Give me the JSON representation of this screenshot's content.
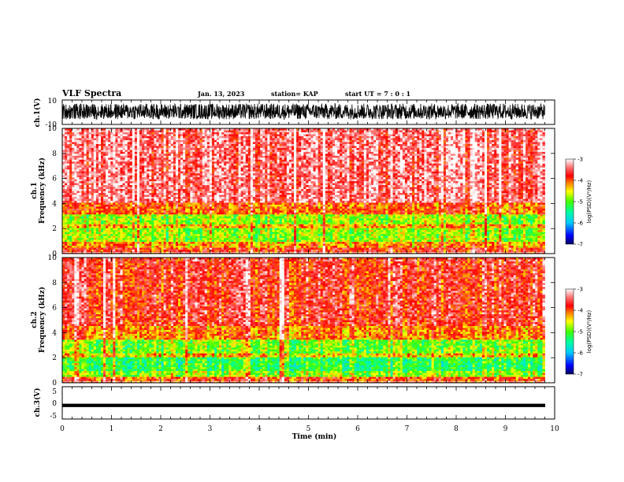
{
  "header": {
    "title": "VLF Spectra",
    "date": "Jan. 13, 2023",
    "station": "station= KAP",
    "start": "start  UT =   7 : 0  : 1"
  },
  "chart_data": [
    {
      "type": "line",
      "panel": "ch1-waveform",
      "ylabel": "ch.1(V)",
      "ylim": [
        -10,
        10
      ],
      "yticks": [
        "10",
        "-10"
      ],
      "xlim": [
        0,
        10
      ],
      "signal": "dense oscillation, approx -5 to +8 V, data ends at ~9.8 min"
    },
    {
      "type": "heatmap",
      "panel": "ch1-spectrogram",
      "ylabel": "ch.1\nFrequency (kHz)",
      "ylim": [
        0,
        10
      ],
      "yticks": [
        "0",
        "2",
        "4",
        "6",
        "8",
        "10"
      ],
      "xlim": [
        0,
        10
      ],
      "x_data_end": 9.8,
      "color_scale": {
        "label": "log(PSD)(V²/Hz)",
        "min": -7,
        "max": -3,
        "ticks": [
          "-3",
          "-4",
          "-5",
          "-6",
          "-7"
        ]
      },
      "bands": [
        {
          "f_low": 0.0,
          "f_high": 0.5,
          "level": -3.8
        },
        {
          "f_low": 0.5,
          "f_high": 1.0,
          "level": -4.2
        },
        {
          "f_low": 1.0,
          "f_high": 2.0,
          "level": -4.8
        },
        {
          "f_low": 2.0,
          "f_high": 2.3,
          "level": -4.3
        },
        {
          "f_low": 2.3,
          "f_high": 3.2,
          "level": -4.8
        },
        {
          "f_low": 3.2,
          "f_high": 4.0,
          "level": -4.0
        },
        {
          "f_low": 4.0,
          "f_high": 10.0,
          "level": -3.4
        }
      ]
    },
    {
      "type": "heatmap",
      "panel": "ch2-spectrogram",
      "ylabel": "ch.2\nFrequency (kHz)",
      "ylim": [
        0,
        10
      ],
      "yticks": [
        "0",
        "2",
        "4",
        "6",
        "8",
        "10"
      ],
      "xlim": [
        0,
        10
      ],
      "x_data_end": 9.8,
      "color_scale": {
        "label": "log(PSD)(V²/Hz)",
        "min": -7,
        "max": -3,
        "ticks": [
          "-3",
          "-4",
          "-5",
          "-6",
          "-7"
        ]
      },
      "bands": [
        {
          "f_low": 0.0,
          "f_high": 0.5,
          "level": -3.9
        },
        {
          "f_low": 0.5,
          "f_high": 1.0,
          "level": -4.8
        },
        {
          "f_low": 1.0,
          "f_high": 2.0,
          "level": -5.2
        },
        {
          "f_low": 2.0,
          "f_high": 2.3,
          "level": -4.4
        },
        {
          "f_low": 2.3,
          "f_high": 3.5,
          "level": -4.9
        },
        {
          "f_low": 3.5,
          "f_high": 4.5,
          "level": -4.1
        },
        {
          "f_low": 4.5,
          "f_high": 10.0,
          "level": -3.7
        }
      ]
    },
    {
      "type": "line",
      "panel": "ch3-waveform",
      "ylabel": "ch.3(V)",
      "ylim": [
        -5,
        5
      ],
      "yticks": [
        "5",
        "0",
        "-5"
      ],
      "xlim": [
        0,
        10
      ],
      "signal": "flat, approx -0.4 to -1.2 V (thick trace), data ends at ~9.8 min"
    }
  ],
  "xaxis": {
    "label": "Time (min)",
    "ticks": [
      "0",
      "1",
      "2",
      "3",
      "4",
      "5",
      "6",
      "7",
      "8",
      "9",
      "10"
    ]
  }
}
